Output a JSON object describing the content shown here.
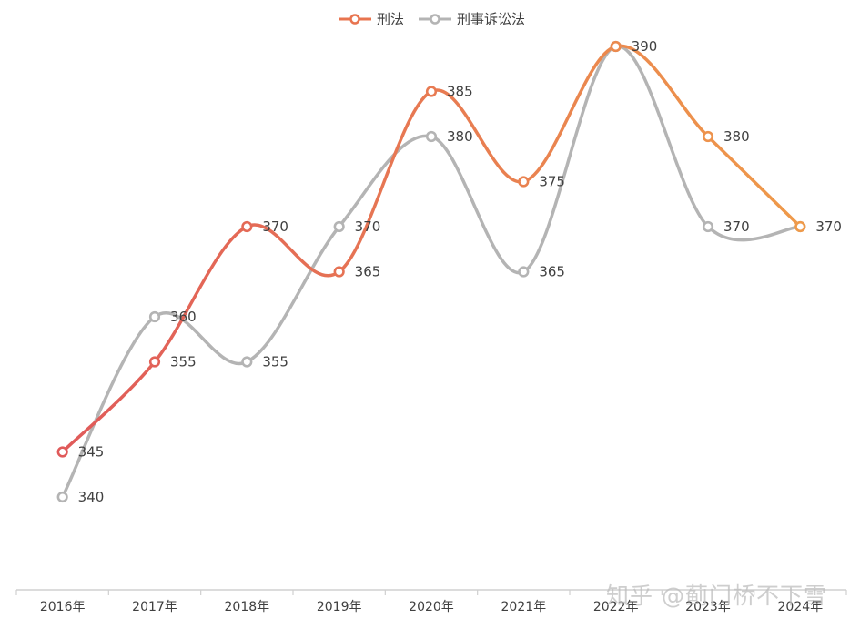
{
  "chart_data": {
    "type": "line",
    "categories": [
      "2016年",
      "2017年",
      "2018年",
      "2019年",
      "2020年",
      "2021年",
      "2022年",
      "2023年",
      "2024年"
    ],
    "series": [
      {
        "name": "刑法",
        "values": [
          345,
          355,
          370,
          365,
          385,
          375,
          390,
          380,
          370
        ],
        "color_start": "#e05a5a",
        "color_end": "#ef9a4a"
      },
      {
        "name": "刑事诉讼法",
        "values": [
          340,
          360,
          355,
          370,
          380,
          365,
          390,
          370,
          370
        ],
        "color_start": "#b4b4b4",
        "color_end": "#b4b4b4"
      }
    ],
    "data_labels": true,
    "ylim": [
      330,
      395
    ],
    "grid": false,
    "legend_position": "top",
    "smooth": true
  },
  "watermark": "知乎 @蓟门桥不下雪"
}
